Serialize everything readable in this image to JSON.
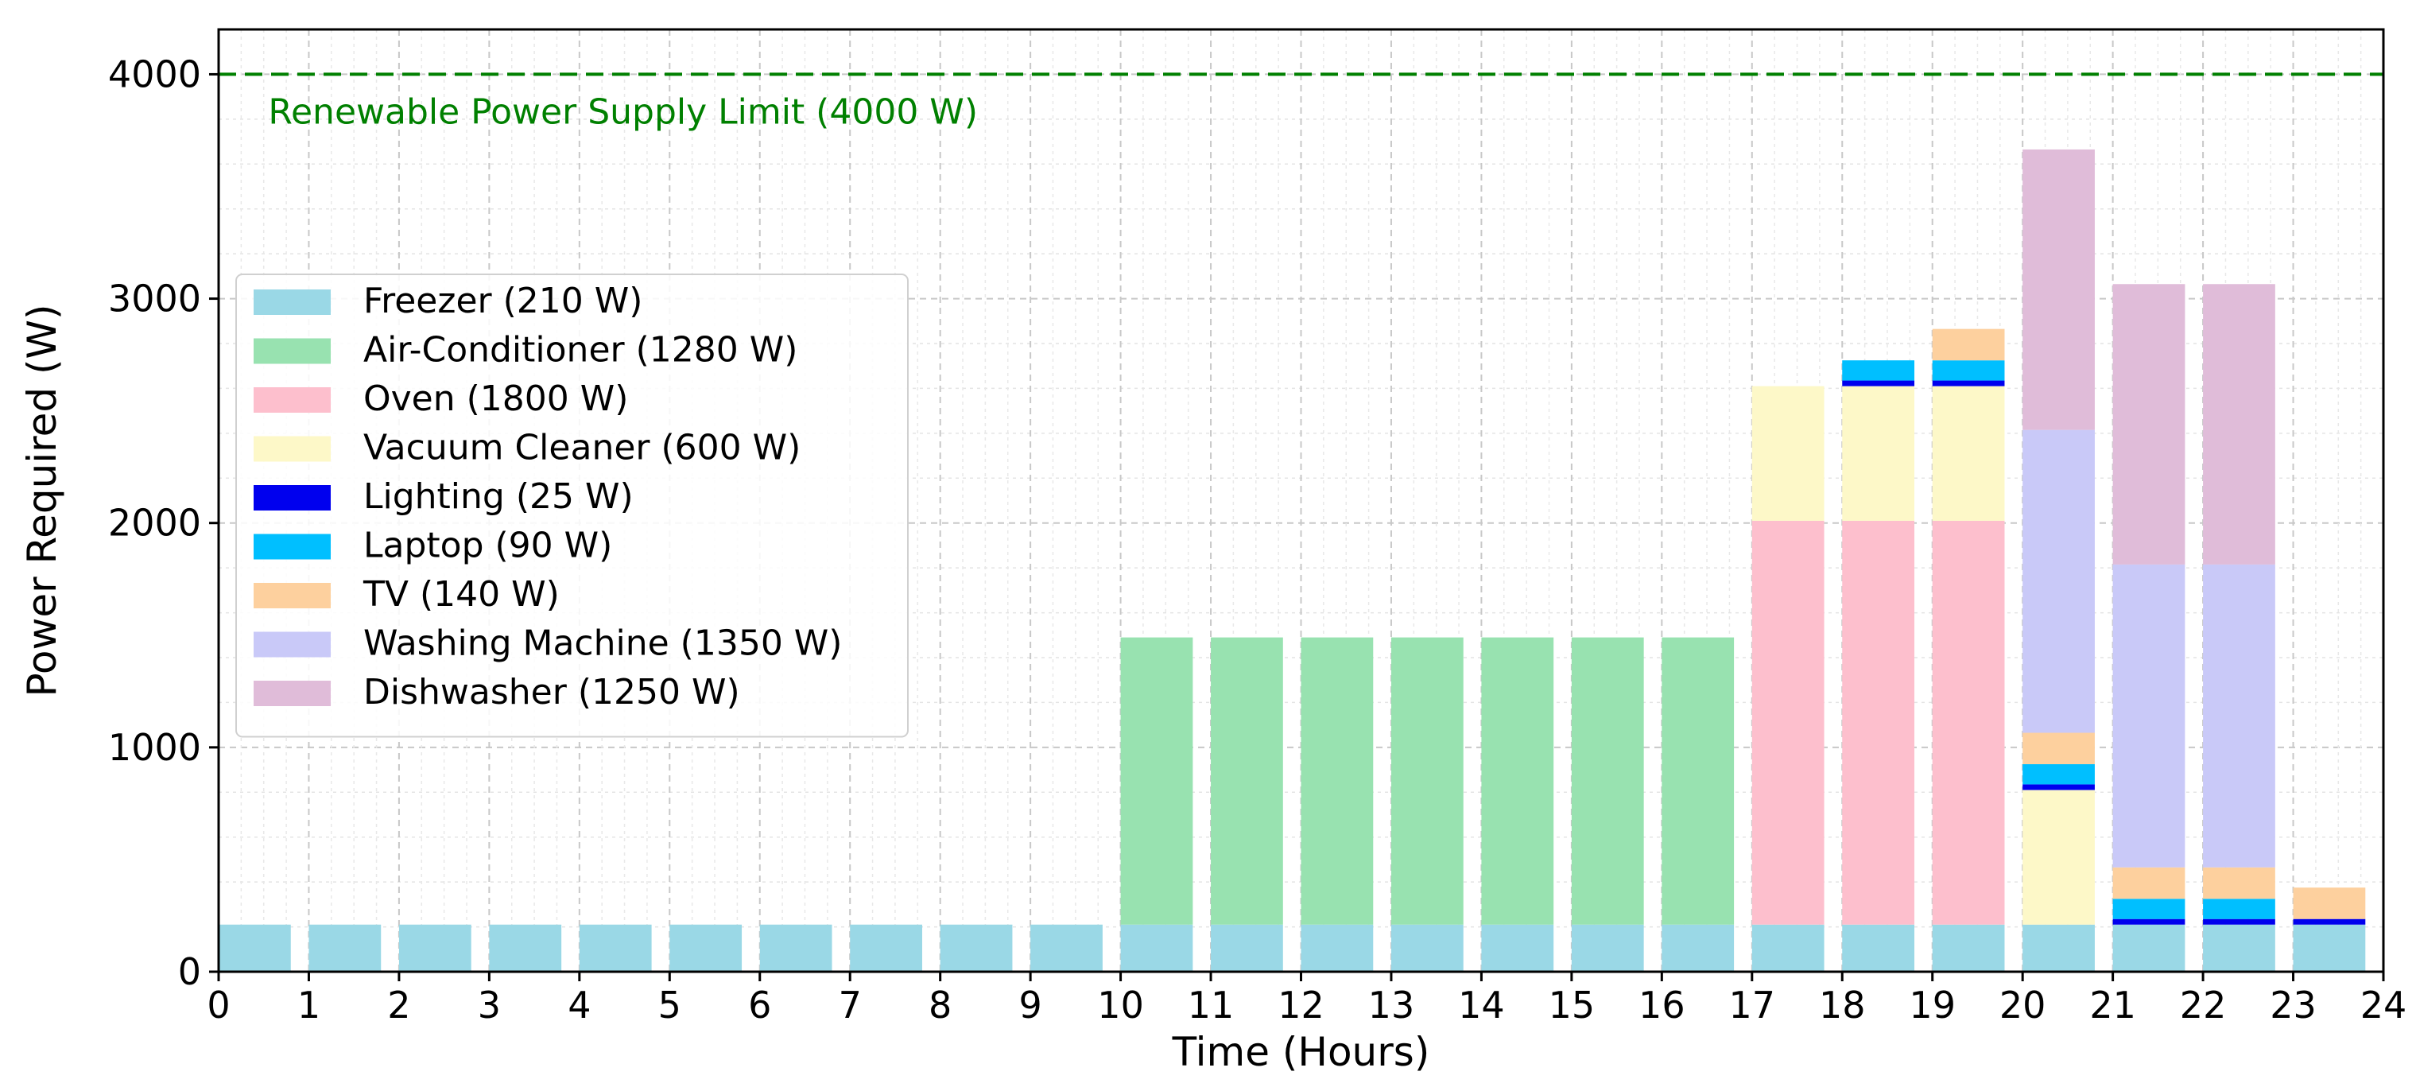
{
  "chart_data": {
    "type": "bar",
    "stacked": true,
    "title": "",
    "xlabel": "Time (Hours)",
    "ylabel": "Power Required (W)",
    "xlim": [
      0,
      24
    ],
    "ylim": [
      0,
      4200
    ],
    "x_ticks": [
      "0",
      "1",
      "2",
      "3",
      "4",
      "5",
      "6",
      "7",
      "8",
      "9",
      "10",
      "11",
      "12",
      "13",
      "14",
      "15",
      "16",
      "17",
      "18",
      "19",
      "20",
      "21",
      "22",
      "23",
      "24"
    ],
    "y_ticks": [
      "0",
      "1000",
      "2000",
      "3000",
      "4000"
    ],
    "grid": true,
    "legend_position": "center-left",
    "x": [
      0,
      1,
      2,
      3,
      4,
      5,
      6,
      7,
      8,
      9,
      10,
      11,
      12,
      13,
      14,
      15,
      16,
      17,
      18,
      19,
      20,
      21,
      22,
      23
    ],
    "series": [
      {
        "name": "Freezer (210 W)",
        "color": "#9ad8e6",
        "values": [
          210,
          210,
          210,
          210,
          210,
          210,
          210,
          210,
          210,
          210,
          210,
          210,
          210,
          210,
          210,
          210,
          210,
          210,
          210,
          210,
          210,
          210,
          210,
          210
        ]
      },
      {
        "name": "Air-Conditioner (1280 W)",
        "color": "#98e2b0",
        "values": [
          0,
          0,
          0,
          0,
          0,
          0,
          0,
          0,
          0,
          0,
          1280,
          1280,
          1280,
          1280,
          1280,
          1280,
          1280,
          0,
          0,
          0,
          0,
          0,
          0,
          0
        ]
      },
      {
        "name": "Oven (1800 W)",
        "color": "#fdbfcd",
        "values": [
          0,
          0,
          0,
          0,
          0,
          0,
          0,
          0,
          0,
          0,
          0,
          0,
          0,
          0,
          0,
          0,
          0,
          1800,
          1800,
          1800,
          0,
          0,
          0,
          0
        ]
      },
      {
        "name": "Vacuum Cleaner (600 W)",
        "color": "#fdf8c8",
        "values": [
          0,
          0,
          0,
          0,
          0,
          0,
          0,
          0,
          0,
          0,
          0,
          0,
          0,
          0,
          0,
          0,
          0,
          600,
          600,
          600,
          600,
          0,
          0,
          0
        ]
      },
      {
        "name": "Lighting (25 W)",
        "color": "#0000ee",
        "values": [
          0,
          0,
          0,
          0,
          0,
          0,
          0,
          0,
          0,
          0,
          0,
          0,
          0,
          0,
          0,
          0,
          0,
          0,
          25,
          25,
          25,
          25,
          25,
          25
        ]
      },
      {
        "name": "Laptop (90 W)",
        "color": "#00bfff",
        "values": [
          0,
          0,
          0,
          0,
          0,
          0,
          0,
          0,
          0,
          0,
          0,
          0,
          0,
          0,
          0,
          0,
          0,
          0,
          90,
          90,
          90,
          90,
          90,
          0
        ]
      },
      {
        "name": "TV (140 W)",
        "color": "#fdd09e",
        "values": [
          0,
          0,
          0,
          0,
          0,
          0,
          0,
          0,
          0,
          0,
          0,
          0,
          0,
          0,
          0,
          0,
          0,
          0,
          0,
          140,
          140,
          140,
          140,
          140
        ]
      },
      {
        "name": "Washing Machine (1350 W)",
        "color": "#c9c9f8",
        "values": [
          0,
          0,
          0,
          0,
          0,
          0,
          0,
          0,
          0,
          0,
          0,
          0,
          0,
          0,
          0,
          0,
          0,
          0,
          0,
          0,
          1350,
          1350,
          1350,
          0
        ]
      },
      {
        "name": "Dishwasher (1250 W)",
        "color": "#e0bcd9",
        "values": [
          0,
          0,
          0,
          0,
          0,
          0,
          0,
          0,
          0,
          0,
          0,
          0,
          0,
          0,
          0,
          0,
          0,
          0,
          0,
          0,
          1250,
          1250,
          1250,
          0
        ]
      }
    ],
    "annotations": [
      {
        "type": "hline",
        "y": 4000,
        "color": "#008000",
        "style": "dashed",
        "label": "Renewable Power Supply Limit (4000 W)"
      }
    ]
  }
}
